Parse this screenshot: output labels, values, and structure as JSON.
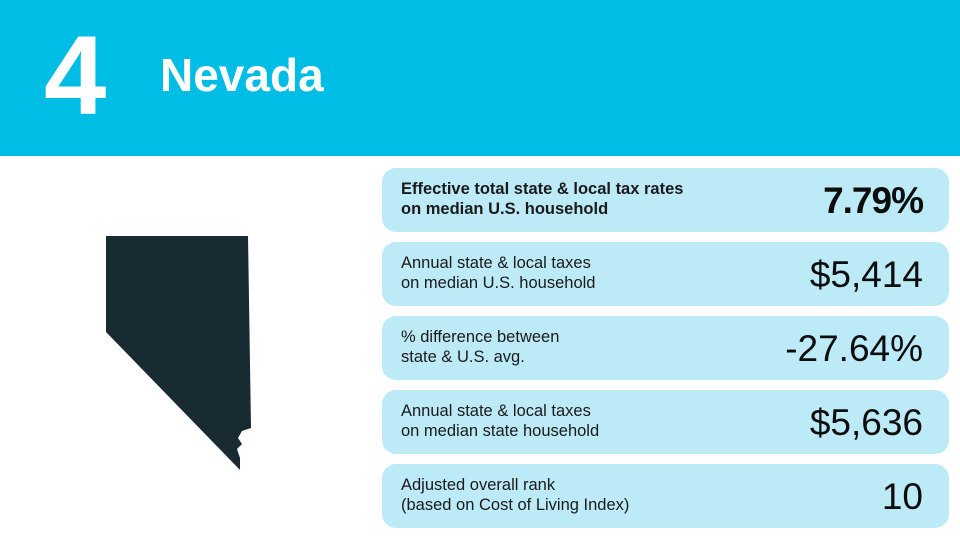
{
  "header": {
    "rank": "4",
    "state": "Nevada",
    "background_color": "#00bde6"
  },
  "map": {
    "icon": "nevada-state-silhouette",
    "fill_color": "#182b33"
  },
  "stats": [
    {
      "label_line1": "Effective total state & local tax rates",
      "label_line2": "on median U.S. household",
      "value": "7.79%",
      "emphasis": true
    },
    {
      "label_line1": "Annual state & local taxes",
      "label_line2": "on median U.S. household",
      "value": "$5,414",
      "emphasis": false
    },
    {
      "label_line1": "% difference between",
      "label_line2": "state & U.S. avg.",
      "value": "-27.64%",
      "emphasis": false
    },
    {
      "label_line1": "Annual state & local taxes",
      "label_line2": "on median state household",
      "value": "$5,636",
      "emphasis": false
    },
    {
      "label_line1": "Adjusted overall rank",
      "label_line2": "(based on Cost of Living Index)",
      "value": "10",
      "emphasis": false
    }
  ],
  "card_color": "#bdeaf7"
}
